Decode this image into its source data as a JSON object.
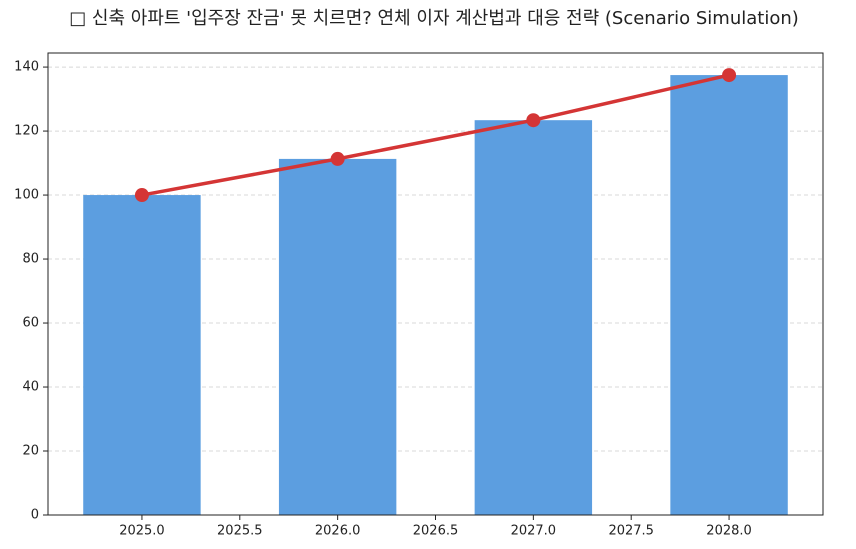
{
  "chart_data": {
    "type": "bar",
    "title": "□ 신축 아파트 '입주장 잔금' 못 치르면? 연체 이자 계산법과 대응 전략 (Scenario Simulation)",
    "x": [
      2025,
      2026,
      2027,
      2028
    ],
    "series": [
      {
        "type": "bar",
        "color": "#5c9ee0",
        "values": [
          100,
          111.3,
          123.4,
          137.5
        ]
      },
      {
        "type": "line",
        "color": "#d43535",
        "values": [
          100,
          111.3,
          123.4,
          137.5
        ]
      }
    ],
    "bar_width": 0.6,
    "xlim": [
      2024.52,
      2028.48
    ],
    "xticks": [
      {
        "value": 2025,
        "label": "2025.0"
      },
      {
        "value": 2025.5,
        "label": "2025.5"
      },
      {
        "value": 2026,
        "label": "2026.0"
      },
      {
        "value": 2026.5,
        "label": "2026.5"
      },
      {
        "value": 2027,
        "label": "2027.0"
      },
      {
        "value": 2027.5,
        "label": "2027.5"
      },
      {
        "value": 2028,
        "label": "2028.0"
      }
    ],
    "ylim": [
      0,
      144.4
    ],
    "yticks": [
      0,
      20,
      40,
      60,
      80,
      100,
      120,
      140
    ],
    "grid": true
  }
}
